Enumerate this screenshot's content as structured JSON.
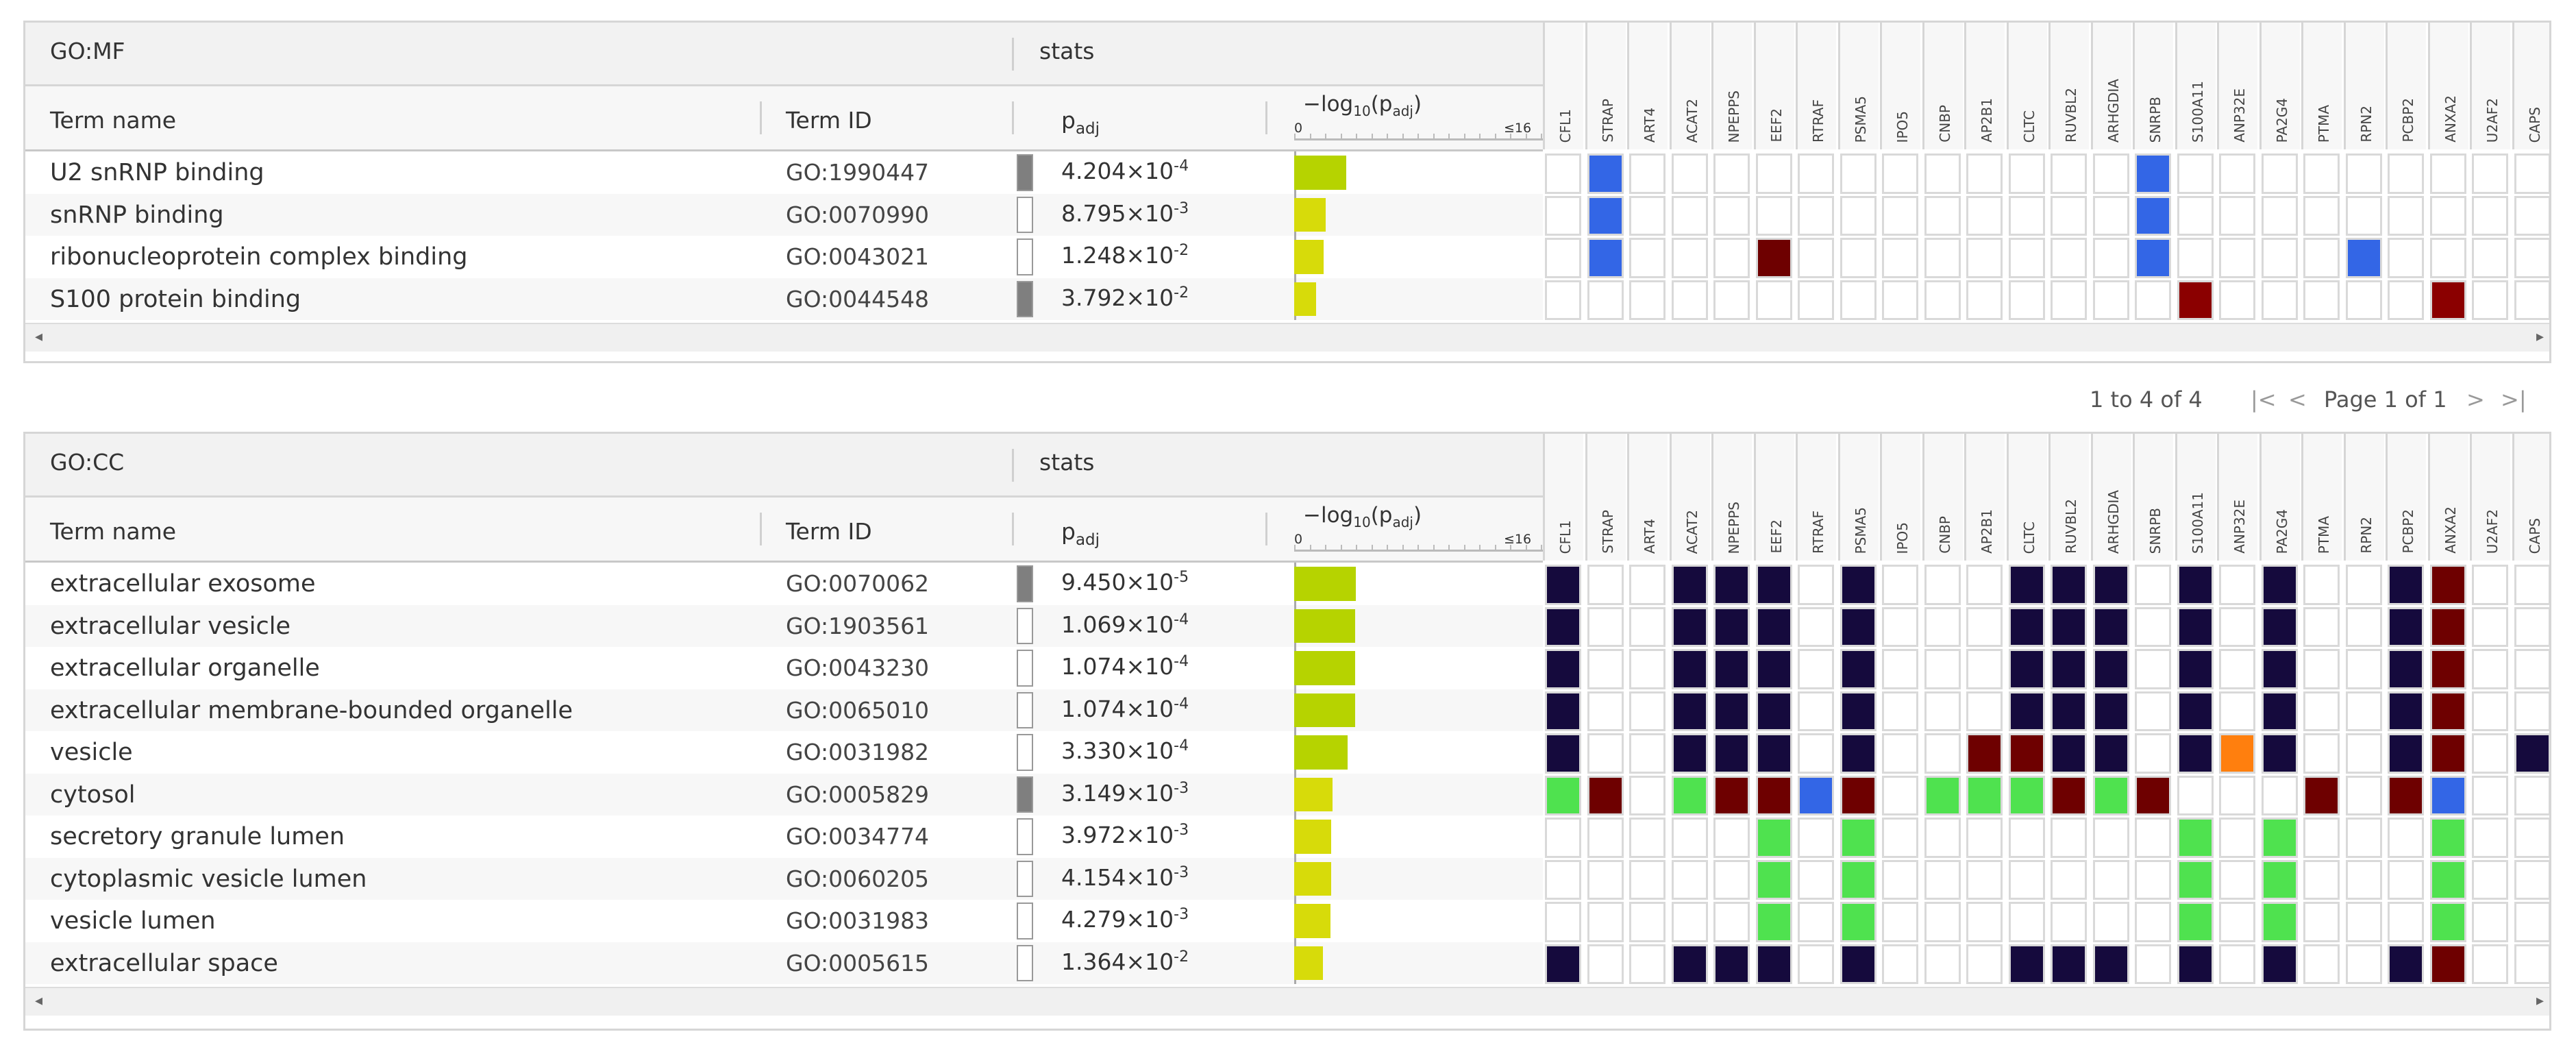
{
  "genes": [
    "CFL1",
    "STRAP",
    "ART4",
    "ACAT2",
    "NPEPPS",
    "EEF2",
    "RTRAF",
    "PSMA5",
    "IPO5",
    "CNBP",
    "AP2B1",
    "CLTC",
    "RUVBL2",
    "ARHGDIA",
    "SNRPB",
    "S100A11",
    "ANP32E",
    "PA2G4",
    "PTMA",
    "RPN2",
    "PCBP2",
    "ANXA2",
    "U2AF2",
    "CAPS"
  ],
  "colors": {
    "blue": "#3366e6",
    "darkred": "#6e0000",
    "red": "#8b0000",
    "navy": "#150a3d",
    "green": "#4fe24f",
    "orange": "#ff7f0e",
    "bar": "#b6d300",
    "bar_light": "#d7db0a",
    "sig_dark": "#7f7f7f"
  },
  "headers": {
    "term_name": "Term name",
    "term_id": "Term ID",
    "p": "p",
    "p_sub": "adj",
    "stats": "stats",
    "axis_label_prefix": "−log",
    "axis_label_10": "10",
    "axis_label_p": "(p",
    "axis_label_adj": "adj",
    ")": ")",
    "axis_zero": "0",
    "axis_max": "≤16"
  },
  "mf": {
    "title": "GO:MF",
    "rows": [
      {
        "term": "U2 snRNP binding",
        "id": "GO:1990447",
        "sig": true,
        "p": "4.204×10",
        "exp": "-4",
        "neglog": 3.38,
        "cells": {
          "1": "blue",
          "14": "blue"
        }
      },
      {
        "term": "snRNP binding",
        "id": "GO:0070990",
        "sig": false,
        "p": "8.795×10",
        "exp": "-3",
        "neglog": 2.06,
        "cells": {
          "1": "blue",
          "14": "blue"
        }
      },
      {
        "term": "ribonucleoprotein complex binding",
        "id": "GO:0043021",
        "sig": false,
        "p": "1.248×10",
        "exp": "-2",
        "neglog": 1.9,
        "cells": {
          "1": "blue",
          "5": "darkred",
          "14": "blue",
          "19": "blue"
        }
      },
      {
        "term": "S100 protein binding",
        "id": "GO:0044548",
        "sig": true,
        "p": "3.792×10",
        "exp": "-2",
        "neglog": 1.42,
        "cells": {
          "15": "red",
          "21": "red"
        }
      }
    ]
  },
  "pager": {
    "range": "1 to 4 of 4",
    "page": "Page 1 of 1"
  },
  "cc": {
    "title": "GO:CC",
    "rows": [
      {
        "term": "extracellular exosome",
        "id": "GO:0070062",
        "sig": true,
        "p": "9.450×10",
        "exp": "-5",
        "neglog": 4.02,
        "cells": {
          "0": "navy",
          "3": "navy",
          "4": "navy",
          "5": "navy",
          "7": "navy",
          "11": "navy",
          "12": "navy",
          "13": "navy",
          "15": "navy",
          "17": "navy",
          "20": "navy",
          "21": "darkred"
        }
      },
      {
        "term": "extracellular vesicle",
        "id": "GO:1903561",
        "sig": false,
        "p": "1.069×10",
        "exp": "-4",
        "neglog": 3.97,
        "cells": {
          "0": "navy",
          "3": "navy",
          "4": "navy",
          "5": "navy",
          "7": "navy",
          "11": "navy",
          "12": "navy",
          "13": "navy",
          "15": "navy",
          "17": "navy",
          "20": "navy",
          "21": "darkred"
        }
      },
      {
        "term": "extracellular organelle",
        "id": "GO:0043230",
        "sig": false,
        "p": "1.074×10",
        "exp": "-4",
        "neglog": 3.97,
        "cells": {
          "0": "navy",
          "3": "navy",
          "4": "navy",
          "5": "navy",
          "7": "navy",
          "11": "navy",
          "12": "navy",
          "13": "navy",
          "15": "navy",
          "17": "navy",
          "20": "navy",
          "21": "darkred"
        }
      },
      {
        "term": "extracellular membrane-bounded organelle",
        "id": "GO:0065010",
        "sig": false,
        "p": "1.074×10",
        "exp": "-4",
        "neglog": 3.97,
        "cells": {
          "0": "navy",
          "3": "navy",
          "4": "navy",
          "5": "navy",
          "7": "navy",
          "11": "navy",
          "12": "navy",
          "13": "navy",
          "15": "navy",
          "17": "navy",
          "20": "navy",
          "21": "darkred"
        }
      },
      {
        "term": "vesicle",
        "id": "GO:0031982",
        "sig": false,
        "p": "3.330×10",
        "exp": "-4",
        "neglog": 3.48,
        "cells": {
          "0": "navy",
          "3": "navy",
          "4": "navy",
          "5": "navy",
          "7": "navy",
          "10": "darkred",
          "11": "darkred",
          "12": "navy",
          "13": "navy",
          "15": "navy",
          "16": "orange",
          "17": "navy",
          "20": "navy",
          "21": "darkred",
          "23": "navy"
        }
      },
      {
        "term": "cytosol",
        "id": "GO:0005829",
        "sig": true,
        "p": "3.149×10",
        "exp": "-3",
        "neglog": 2.5,
        "cells": {
          "0": "green",
          "1": "darkred",
          "3": "green",
          "4": "darkred",
          "5": "darkred",
          "6": "blue",
          "7": "darkred",
          "9": "green",
          "10": "green",
          "11": "green",
          "12": "darkred",
          "13": "green",
          "14": "darkred",
          "18": "darkred",
          "20": "darkred",
          "21": "blue"
        }
      },
      {
        "term": "secretory granule lumen",
        "id": "GO:0034774",
        "sig": false,
        "p": "3.972×10",
        "exp": "-3",
        "neglog": 2.4,
        "cells": {
          "5": "green",
          "7": "green",
          "15": "green",
          "17": "green",
          "21": "green"
        }
      },
      {
        "term": "cytoplasmic vesicle lumen",
        "id": "GO:0060205",
        "sig": false,
        "p": "4.154×10",
        "exp": "-3",
        "neglog": 2.38,
        "cells": {
          "5": "green",
          "7": "green",
          "15": "green",
          "17": "green",
          "21": "green"
        }
      },
      {
        "term": "vesicle lumen",
        "id": "GO:0031983",
        "sig": false,
        "p": "4.279×10",
        "exp": "-3",
        "neglog": 2.37,
        "cells": {
          "5": "green",
          "7": "green",
          "15": "green",
          "17": "green",
          "21": "green"
        }
      },
      {
        "term": "extracellular space",
        "id": "GO:0005615",
        "sig": false,
        "p": "1.364×10",
        "exp": "-2",
        "neglog": 1.87,
        "cells": {
          "0": "navy",
          "3": "navy",
          "4": "navy",
          "5": "navy",
          "7": "navy",
          "11": "navy",
          "12": "navy",
          "13": "navy",
          "15": "navy",
          "17": "navy",
          "20": "navy",
          "21": "darkred"
        }
      }
    ]
  }
}
